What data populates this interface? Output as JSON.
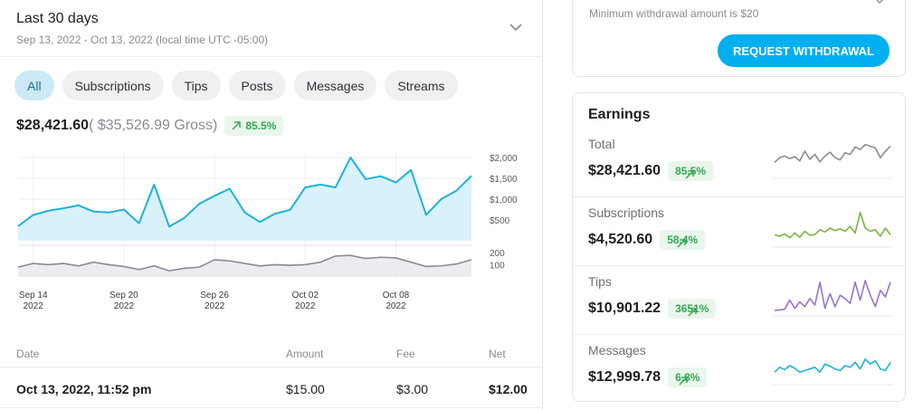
{
  "header": {
    "title": "Last 30 days",
    "subtitle": "Sep 13, 2022 - Oct 13, 2022 (local time UTC -05:00)"
  },
  "tabs": [
    {
      "label": "All",
      "active": true
    },
    {
      "label": "Subscriptions"
    },
    {
      "label": "Tips"
    },
    {
      "label": "Posts"
    },
    {
      "label": "Messages"
    },
    {
      "label": "Streams"
    }
  ],
  "summary": {
    "net": "$28,421.60",
    "gross": "( $35,526.99 Gross)",
    "change": "85.5%"
  },
  "colors": {
    "accent": "#00aff0",
    "line": "#1fb2d8",
    "area": "#d9f1fb",
    "positive": "#34a853"
  },
  "chart_data": {
    "type": "area",
    "x_labels": [
      {
        "day": "Sep 14",
        "year": "2022"
      },
      {
        "day": "Sep 20",
        "year": "2022"
      },
      {
        "day": "Sep 26",
        "year": "2022"
      },
      {
        "day": "Oct 02",
        "year": "2022"
      },
      {
        "day": "Oct 08",
        "year": "2022"
      }
    ],
    "x_label_days": [
      1,
      7,
      13,
      19,
      25
    ],
    "main": {
      "y_ticks": [
        {
          "label": "$2,000",
          "value": 2000
        },
        {
          "label": "$1,500",
          "value": 1500
        },
        {
          "label": "$1,000",
          "value": 1000
        },
        {
          "label": "$500",
          "value": 500
        }
      ],
      "ylim": [
        0,
        2000
      ],
      "values": [
        350,
        620,
        720,
        780,
        850,
        700,
        680,
        750,
        420,
        1350,
        340,
        550,
        890,
        1080,
        1250,
        680,
        450,
        650,
        740,
        1280,
        1350,
        1280,
        2000,
        1480,
        1550,
        1400,
        1700,
        620,
        1000,
        1200,
        1560
      ]
    },
    "secondary": {
      "y_ticks": [
        {
          "label": "200",
          "value": 200
        },
        {
          "label": "100",
          "value": 100
        }
      ],
      "ylim": [
        0,
        250
      ],
      "values": [
        80,
        110,
        100,
        110,
        90,
        120,
        100,
        85,
        60,
        90,
        50,
        70,
        80,
        140,
        130,
        110,
        90,
        100,
        95,
        100,
        120,
        170,
        175,
        150,
        160,
        155,
        120,
        85,
        90,
        105,
        140
      ]
    }
  },
  "table": {
    "headers": {
      "date": "Date",
      "amount": "Amount",
      "fee": "Fee",
      "net": "Net"
    },
    "rows": [
      {
        "date": "Oct 13, 2022, 11:52 pm",
        "amount": "$15.00",
        "fee": "$3.00",
        "net": "$12.00"
      }
    ]
  },
  "withdraw": {
    "min_text": "Minimum withdrawal amount is $20",
    "button": "REQUEST WITHDRAWAL"
  },
  "earnings": {
    "title": "Earnings",
    "rows": [
      {
        "label": "Total",
        "amount": "$28,421.60",
        "change": "85.5%",
        "color": "#8a8a95",
        "spark": [
          40,
          55,
          60,
          52,
          58,
          45,
          75,
          50,
          65,
          42,
          60,
          72,
          55,
          48,
          70,
          65,
          88,
          80,
          95,
          90,
          85,
          55,
          75,
          90
        ]
      },
      {
        "label": "Subscriptions",
        "amount": "$4,520.60",
        "change": "58.4%",
        "color": "#7cb342",
        "spark": [
          30,
          25,
          32,
          20,
          35,
          22,
          40,
          28,
          30,
          45,
          38,
          50,
          42,
          48,
          40,
          55,
          35,
          98,
          50,
          40,
          45,
          25,
          50,
          30
        ]
      },
      {
        "label": "Tips",
        "amount": "$10,901.22",
        "change": "3651%",
        "color": "#9575cd",
        "spark": [
          8,
          10,
          12,
          40,
          15,
          35,
          20,
          45,
          25,
          95,
          15,
          60,
          20,
          55,
          45,
          30,
          95,
          40,
          100,
          55,
          20,
          70,
          50,
          95
        ]
      },
      {
        "label": "Messages",
        "amount": "$12,999.78",
        "change": "6.8%",
        "color": "#1fb2d8",
        "spark": [
          30,
          45,
          38,
          50,
          42,
          30,
          35,
          40,
          45,
          30,
          55,
          48,
          40,
          35,
          50,
          45,
          60,
          40,
          70,
          55,
          65,
          40,
          35,
          60
        ]
      }
    ]
  }
}
